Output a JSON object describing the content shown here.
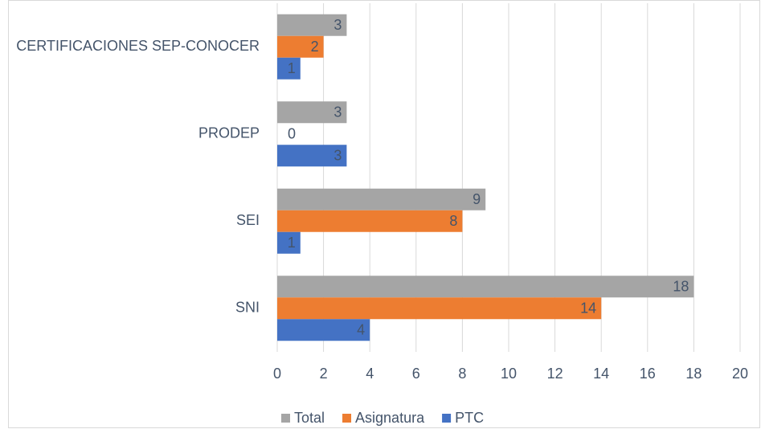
{
  "chart_data": {
    "type": "hbar",
    "categories": [
      "CERTIFICACIONES SEP-CONOCER",
      "PRODEP",
      "SEI",
      "SNI"
    ],
    "series": [
      {
        "name": "Total",
        "color": "#a5a5a5",
        "values": [
          3,
          3,
          9,
          18
        ]
      },
      {
        "name": "Asignatura",
        "color": "#ed7d31",
        "values": [
          2,
          0,
          8,
          14
        ]
      },
      {
        "name": "PTC",
        "color": "#4472c4",
        "values": [
          1,
          3,
          1,
          4
        ]
      }
    ],
    "xlim": [
      0,
      20
    ],
    "xticks": [
      0,
      2,
      4,
      6,
      8,
      10,
      12,
      14,
      16,
      18,
      20
    ],
    "grid": true,
    "legend": "bottom"
  }
}
